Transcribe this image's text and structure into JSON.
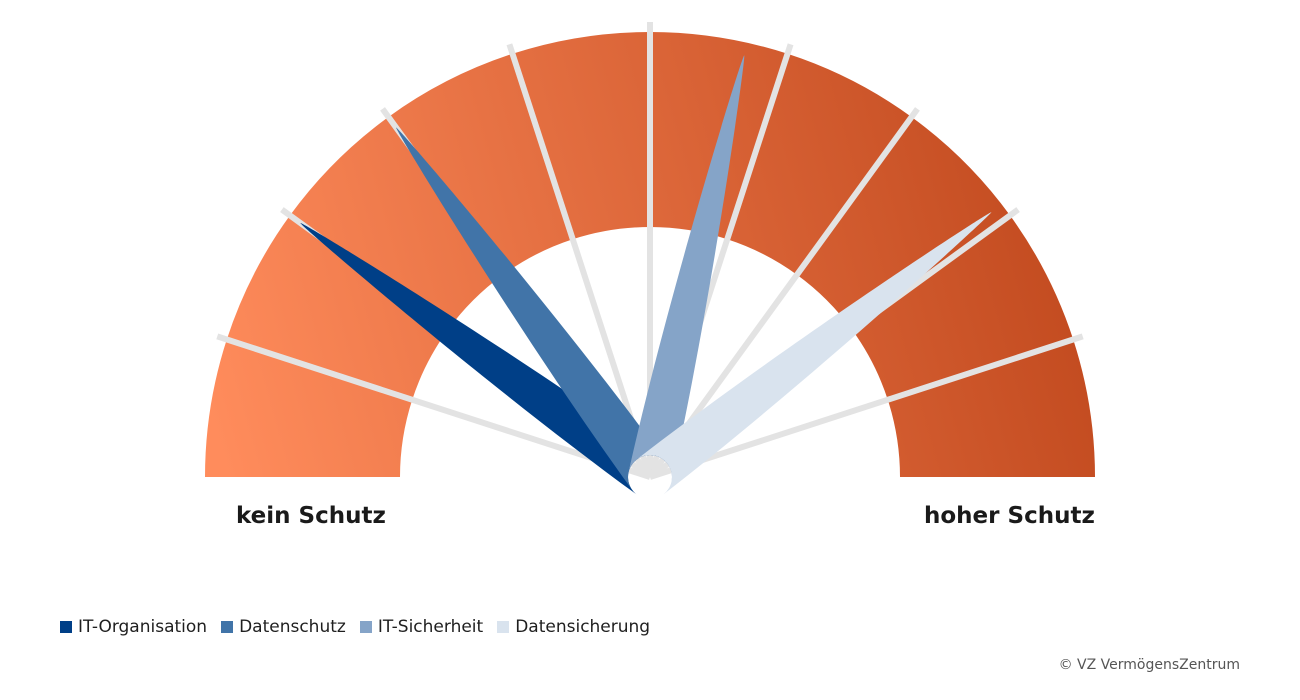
{
  "chart_data": {
    "type": "gauge",
    "scale_min": 0,
    "scale_max": 10,
    "segments": 10,
    "min_label": "kein Schutz",
    "max_label": "hoher Schutz",
    "series": [
      {
        "name": "IT-Organisation",
        "value": 2.0,
        "color": "#003f87"
      },
      {
        "name": "Datenschutz",
        "value": 3.0,
        "color": "#4174a8"
      },
      {
        "name": "IT-Sicherheit",
        "value": 5.7,
        "color": "#85a4c8"
      },
      {
        "name": "Datensicherung",
        "value": 7.9,
        "color": "#d9e3ee"
      }
    ],
    "gradient": {
      "start": "#ff8c5c",
      "end": "#bf471c"
    }
  },
  "copyright": "© VZ VermögensZentrum"
}
